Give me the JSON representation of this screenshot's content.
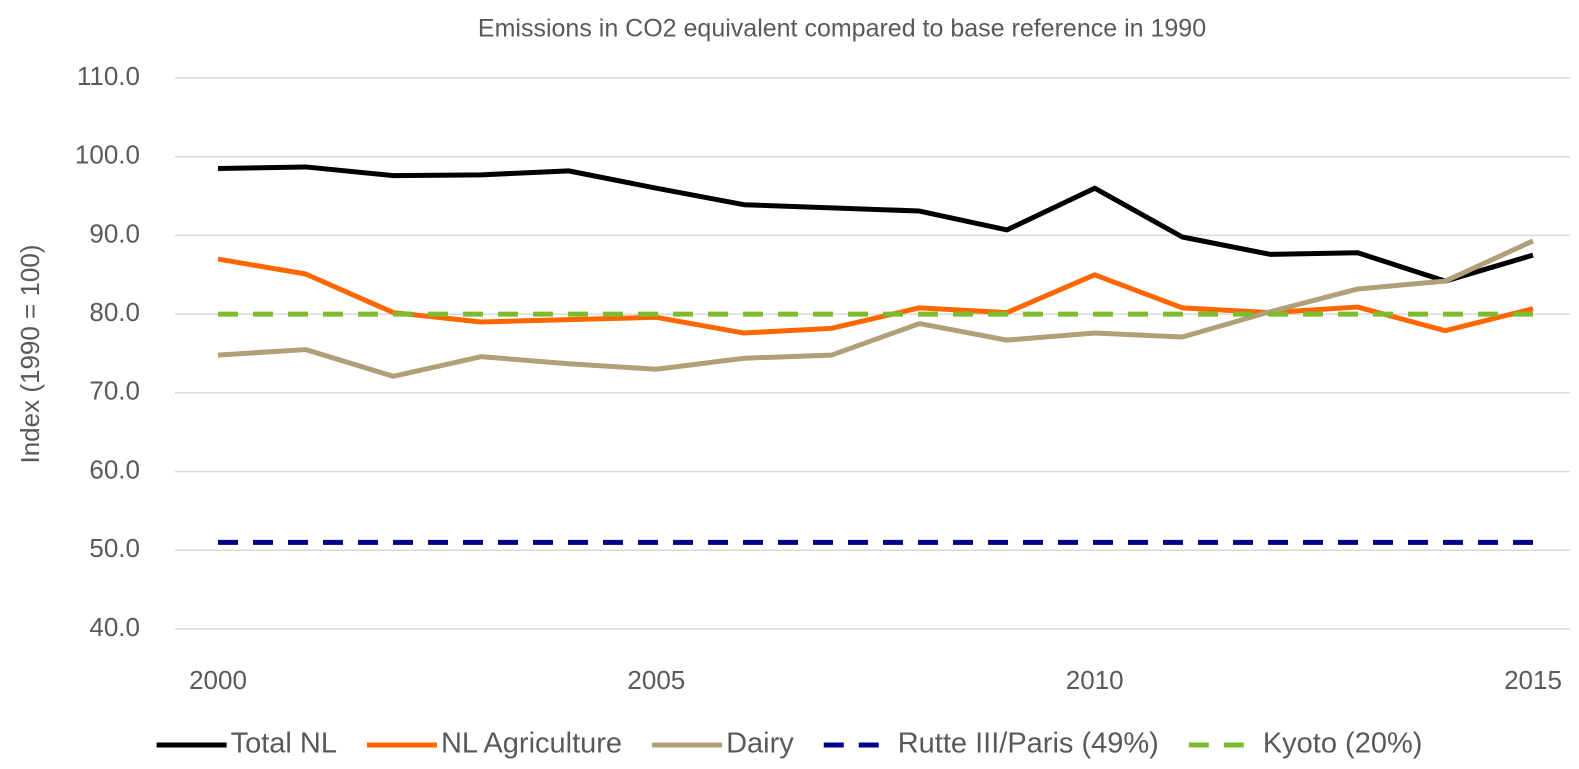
{
  "chart_data": {
    "type": "line",
    "title": "Emissions in CO2 equivalent compared to base reference in 1990",
    "y_label": "Index (1990 = 100)",
    "x": [
      2000,
      2001,
      2002,
      2003,
      2004,
      2005,
      2006,
      2007,
      2008,
      2009,
      2010,
      2011,
      2012,
      2013,
      2014,
      2015
    ],
    "xlim": [
      2000,
      2015
    ],
    "xticks": [
      2000,
      2005,
      2010,
      2015
    ],
    "ylim": [
      40,
      110
    ],
    "yticks": [
      {
        "value": 40,
        "label": "40.0"
      },
      {
        "value": 50,
        "label": "50.0"
      },
      {
        "value": 60,
        "label": "60.0"
      },
      {
        "value": 70,
        "label": "70.0"
      },
      {
        "value": 80,
        "label": "80.0"
      },
      {
        "value": 90,
        "label": "90.0"
      },
      {
        "value": 100,
        "label": "100.0"
      },
      {
        "value": 110,
        "label": "110.0"
      }
    ],
    "grid": true,
    "legend": "bottom",
    "series": [
      {
        "name": "Total NL",
        "color": "#000000",
        "dashed": false,
        "values": [
          98.5,
          98.7,
          97.6,
          97.7,
          98.2,
          96.0,
          93.9,
          93.5,
          93.1,
          90.7,
          96.0,
          89.8,
          87.6,
          87.8,
          84.2,
          87.5
        ]
      },
      {
        "name": "NL Agriculture",
        "color": "#ff6600",
        "dashed": false,
        "values": [
          87.0,
          85.1,
          80.2,
          79.0,
          79.3,
          79.6,
          77.6,
          78.2,
          80.8,
          80.2,
          85.0,
          80.8,
          80.2,
          80.9,
          77.9,
          80.7
        ]
      },
      {
        "name": "Dairy",
        "color": "#b0a078",
        "dashed": false,
        "values": [
          74.8,
          75.5,
          72.1,
          74.6,
          73.7,
          73.0,
          74.4,
          74.8,
          78.8,
          76.7,
          77.6,
          77.1,
          80.3,
          83.2,
          84.2,
          89.3
        ]
      },
      {
        "name": "Rutte III/Paris (49%)",
        "color": "#00008b",
        "dashed": true,
        "values": [
          51,
          51,
          51,
          51,
          51,
          51,
          51,
          51,
          51,
          51,
          51,
          51,
          51,
          51,
          51,
          51
        ]
      },
      {
        "name": "Kyoto (20%)",
        "color": "#7cbb2e",
        "dashed": true,
        "values": [
          80,
          80,
          80,
          80,
          80,
          80,
          80,
          80,
          80,
          80,
          80,
          80,
          80,
          80,
          80,
          80
        ]
      }
    ]
  }
}
